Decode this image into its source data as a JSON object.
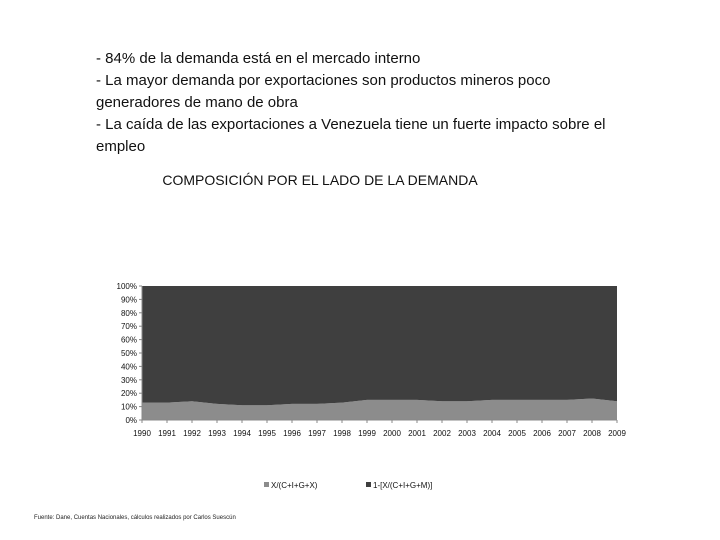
{
  "bullets": [
    "- 84% de la demanda está en el mercado interno",
    "- La mayor demanda por exportaciones son productos mineros poco",
    "generadores de mano de obra",
    "- La caída de las exportaciones a Venezuela tiene un fuerte impacto sobre el",
    "empleo"
  ],
  "source_note": "Fuente: Dane, Cuentas Nacionales, cálculos realizados por Carlos Suescún",
  "chart_data": {
    "type": "area",
    "stacked": true,
    "title": "COMPOSICIÓN POR EL LADO DE LA DEMANDA",
    "x": [
      "1990",
      "1991",
      "1992",
      "1993",
      "1994",
      "1995",
      "1996",
      "1997",
      "1998",
      "1999",
      "2000",
      "2001",
      "2002",
      "2003",
      "2004",
      "2005",
      "2006",
      "2007",
      "2008",
      "2009"
    ],
    "y_ticks": [
      "0%",
      "10%",
      "20%",
      "30%",
      "40%",
      "50%",
      "60%",
      "70%",
      "80%",
      "90%",
      "100%"
    ],
    "ylim": [
      0,
      100
    ],
    "legend_position": "bottom",
    "series": [
      {
        "name": "X/(C+I+G+X)",
        "color": "#8c8c8c",
        "values": [
          13,
          13,
          14,
          12,
          11,
          11,
          12,
          12,
          13,
          15,
          15,
          15,
          14,
          14,
          15,
          15,
          15,
          15,
          16,
          14
        ]
      },
      {
        "name": "1-[X/(C+I+G+M)]",
        "color": "#3f3f3f",
        "values": [
          87,
          87,
          86,
          88,
          89,
          89,
          88,
          88,
          87,
          85,
          85,
          85,
          86,
          86,
          85,
          85,
          85,
          85,
          84,
          86
        ]
      }
    ]
  }
}
